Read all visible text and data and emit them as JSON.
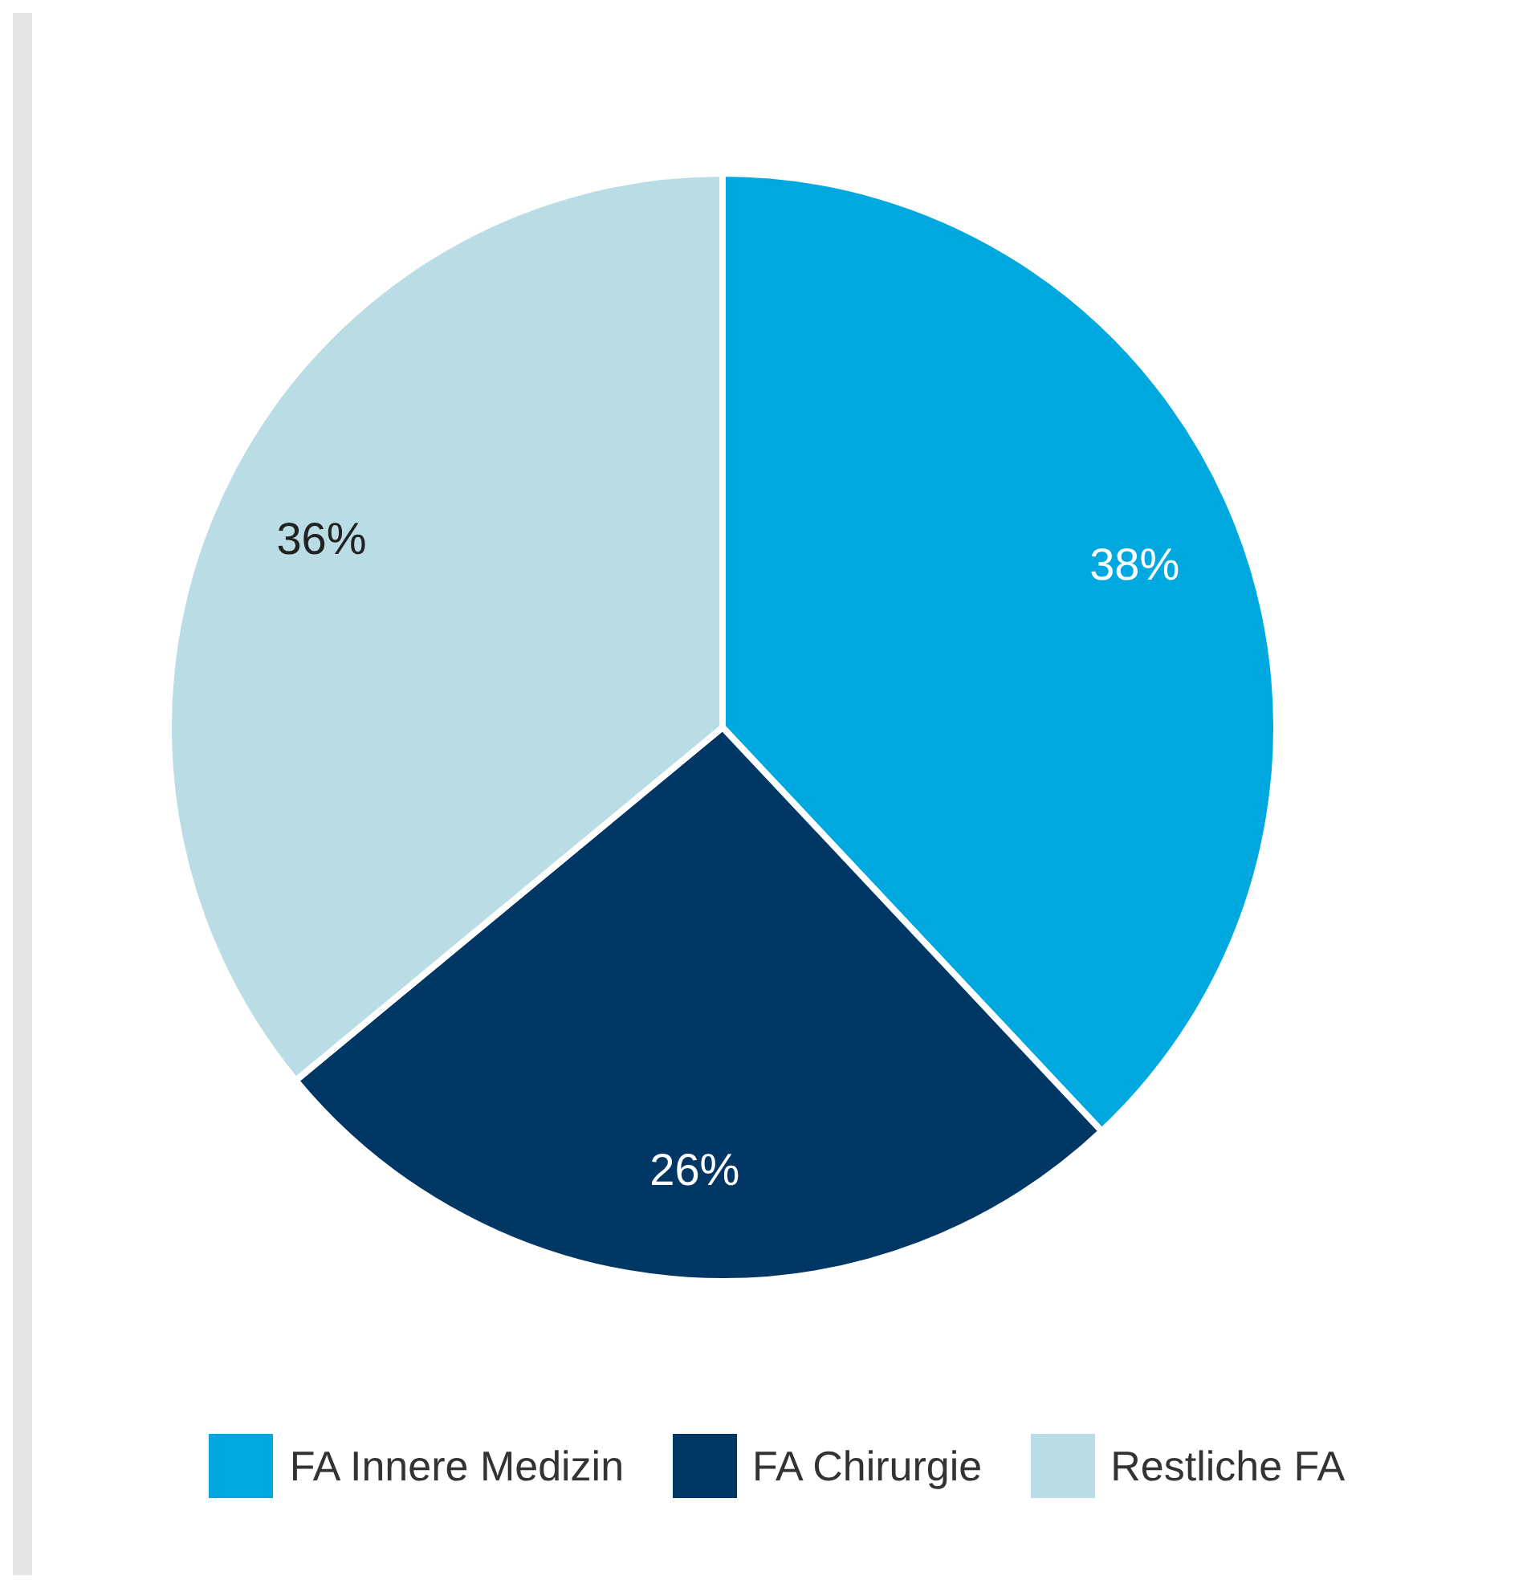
{
  "chart_data": {
    "type": "pie",
    "categories": [
      "FA Innere Medizin",
      "FA Chirurgie",
      "Restliche FA"
    ],
    "values": [
      38,
      26,
      36
    ],
    "value_labels": [
      "38%",
      "26%",
      "36%"
    ],
    "colors": [
      "#00a8e0",
      "#003764",
      "#b9dce5"
    ],
    "legend": "bottom"
  }
}
